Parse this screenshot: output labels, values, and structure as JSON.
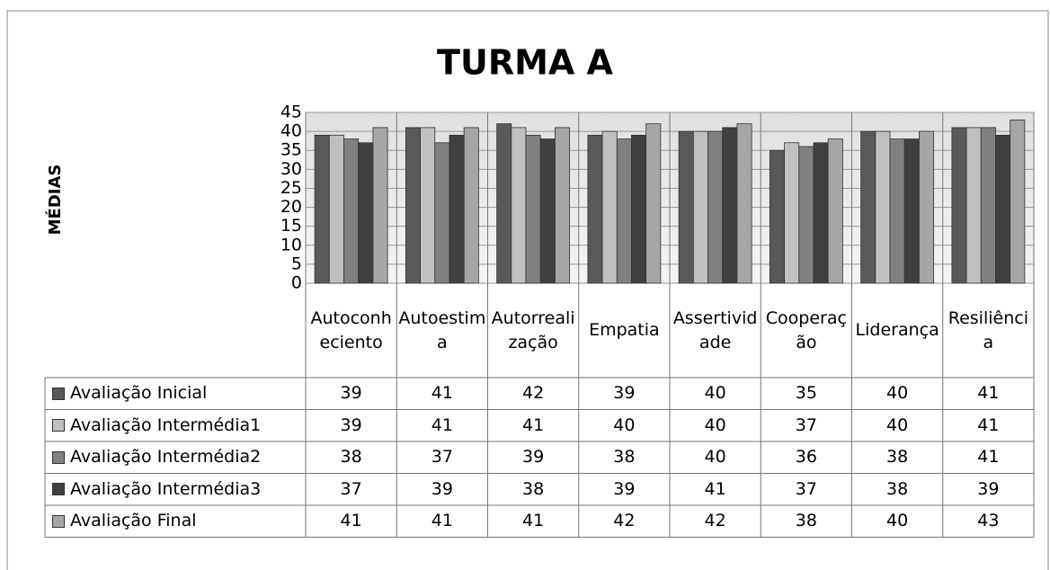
{
  "chart_data": {
    "type": "bar",
    "title": "TURMA  A",
    "y_label": "MÉDIAS",
    "categories": [
      "Autoconheciento",
      "Autoestima",
      "Autorrealização",
      "Empatia",
      "Assertividade",
      "Cooperação",
      "Liderança",
      "Resiliência"
    ],
    "series": [
      {
        "name": "Avaliação Inicial",
        "color": "#595959",
        "values": [
          39,
          41,
          42,
          39,
          40,
          35,
          40,
          41
        ]
      },
      {
        "name": "Avaliação Intermédia1",
        "color": "#c0c0c0",
        "values": [
          39,
          41,
          41,
          40,
          40,
          37,
          40,
          41
        ]
      },
      {
        "name": "Avaliação Intermédia2",
        "color": "#808080",
        "values": [
          38,
          37,
          39,
          38,
          40,
          36,
          38,
          41
        ]
      },
      {
        "name": "Avaliação Intermédia3",
        "color": "#404040",
        "values": [
          37,
          39,
          38,
          39,
          41,
          37,
          38,
          39
        ]
      },
      {
        "name": "Avaliação Final",
        "color": "#a6a6a6",
        "values": [
          41,
          41,
          41,
          42,
          42,
          38,
          40,
          43
        ]
      }
    ],
    "ylim": [
      0,
      45
    ],
    "yticks": [
      0,
      5,
      10,
      15,
      20,
      25,
      30,
      35,
      40,
      45
    ],
    "grid": true
  }
}
